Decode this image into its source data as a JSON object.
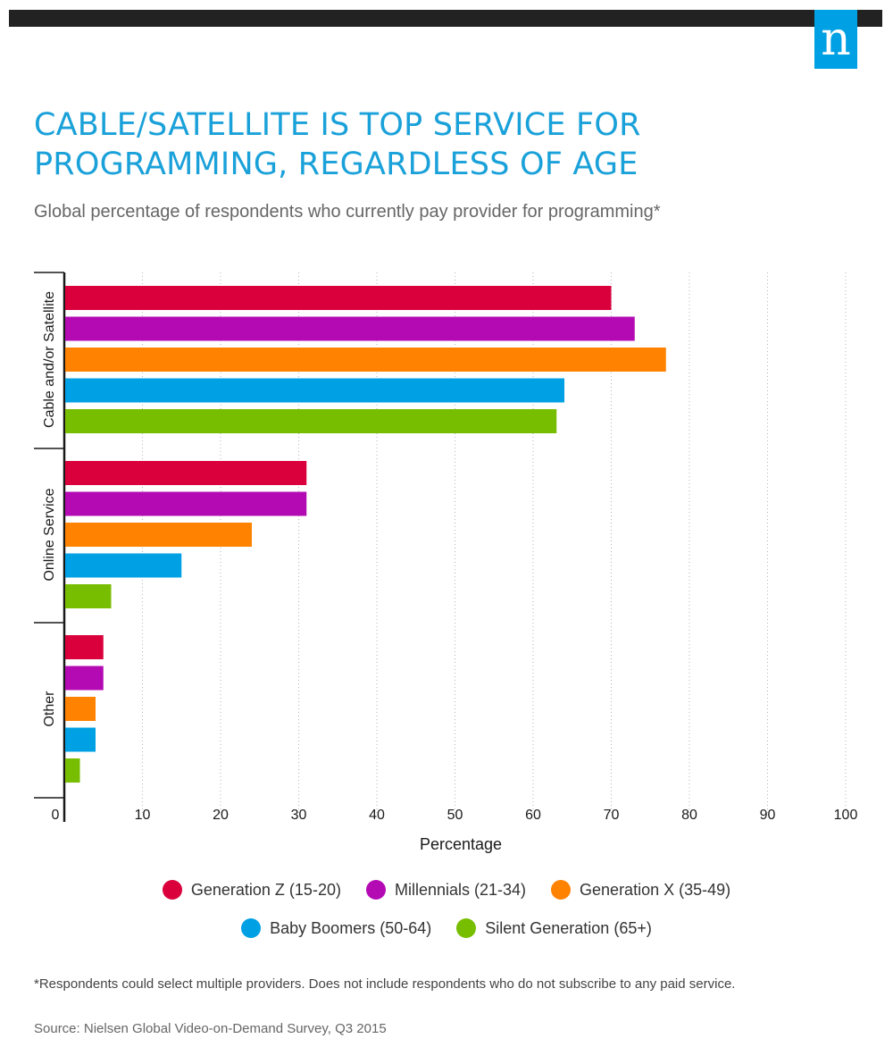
{
  "header": {
    "logo_letter": "n",
    "title_line1": "CABLE/SATELLITE IS TOP SERVICE FOR",
    "title_line2": "PROGRAMMING, REGARDLESS OF AGE",
    "subtitle": "Global percentage of respondents who currently pay provider for programming*"
  },
  "chart_data": {
    "type": "bar",
    "orientation": "horizontal",
    "categories": [
      "Cable and/or Satellite",
      "Online Service",
      "Other"
    ],
    "series": [
      {
        "name": "Generation Z (15-20)",
        "color": "#d9003c",
        "values": [
          70,
          31,
          5
        ]
      },
      {
        "name": "Millennials (21-34)",
        "color": "#b40ab4",
        "values": [
          73,
          31,
          5
        ]
      },
      {
        "name": "Generation X (35-49)",
        "color": "#ff8200",
        "values": [
          77,
          24,
          4
        ]
      },
      {
        "name": "Baby Boomers (50-64)",
        "color": "#00a0e4",
        "values": [
          64,
          15,
          4
        ]
      },
      {
        "name": "Silent Generation (65+)",
        "color": "#78be00",
        "values": [
          63,
          6,
          2
        ]
      }
    ],
    "xlabel": "Percentage",
    "xlim": [
      0,
      100
    ],
    "xticks": [
      0,
      10,
      20,
      30,
      40,
      50,
      60,
      70,
      80,
      90,
      100
    ],
    "grid": "vertical dotted",
    "legend": "bottom"
  },
  "footnote": "*Respondents could select multiple providers. Does not include respondents who do not subscribe to any paid service.",
  "source": "Source: Nielsen Global Video-on-Demand Survey, Q3 2015"
}
